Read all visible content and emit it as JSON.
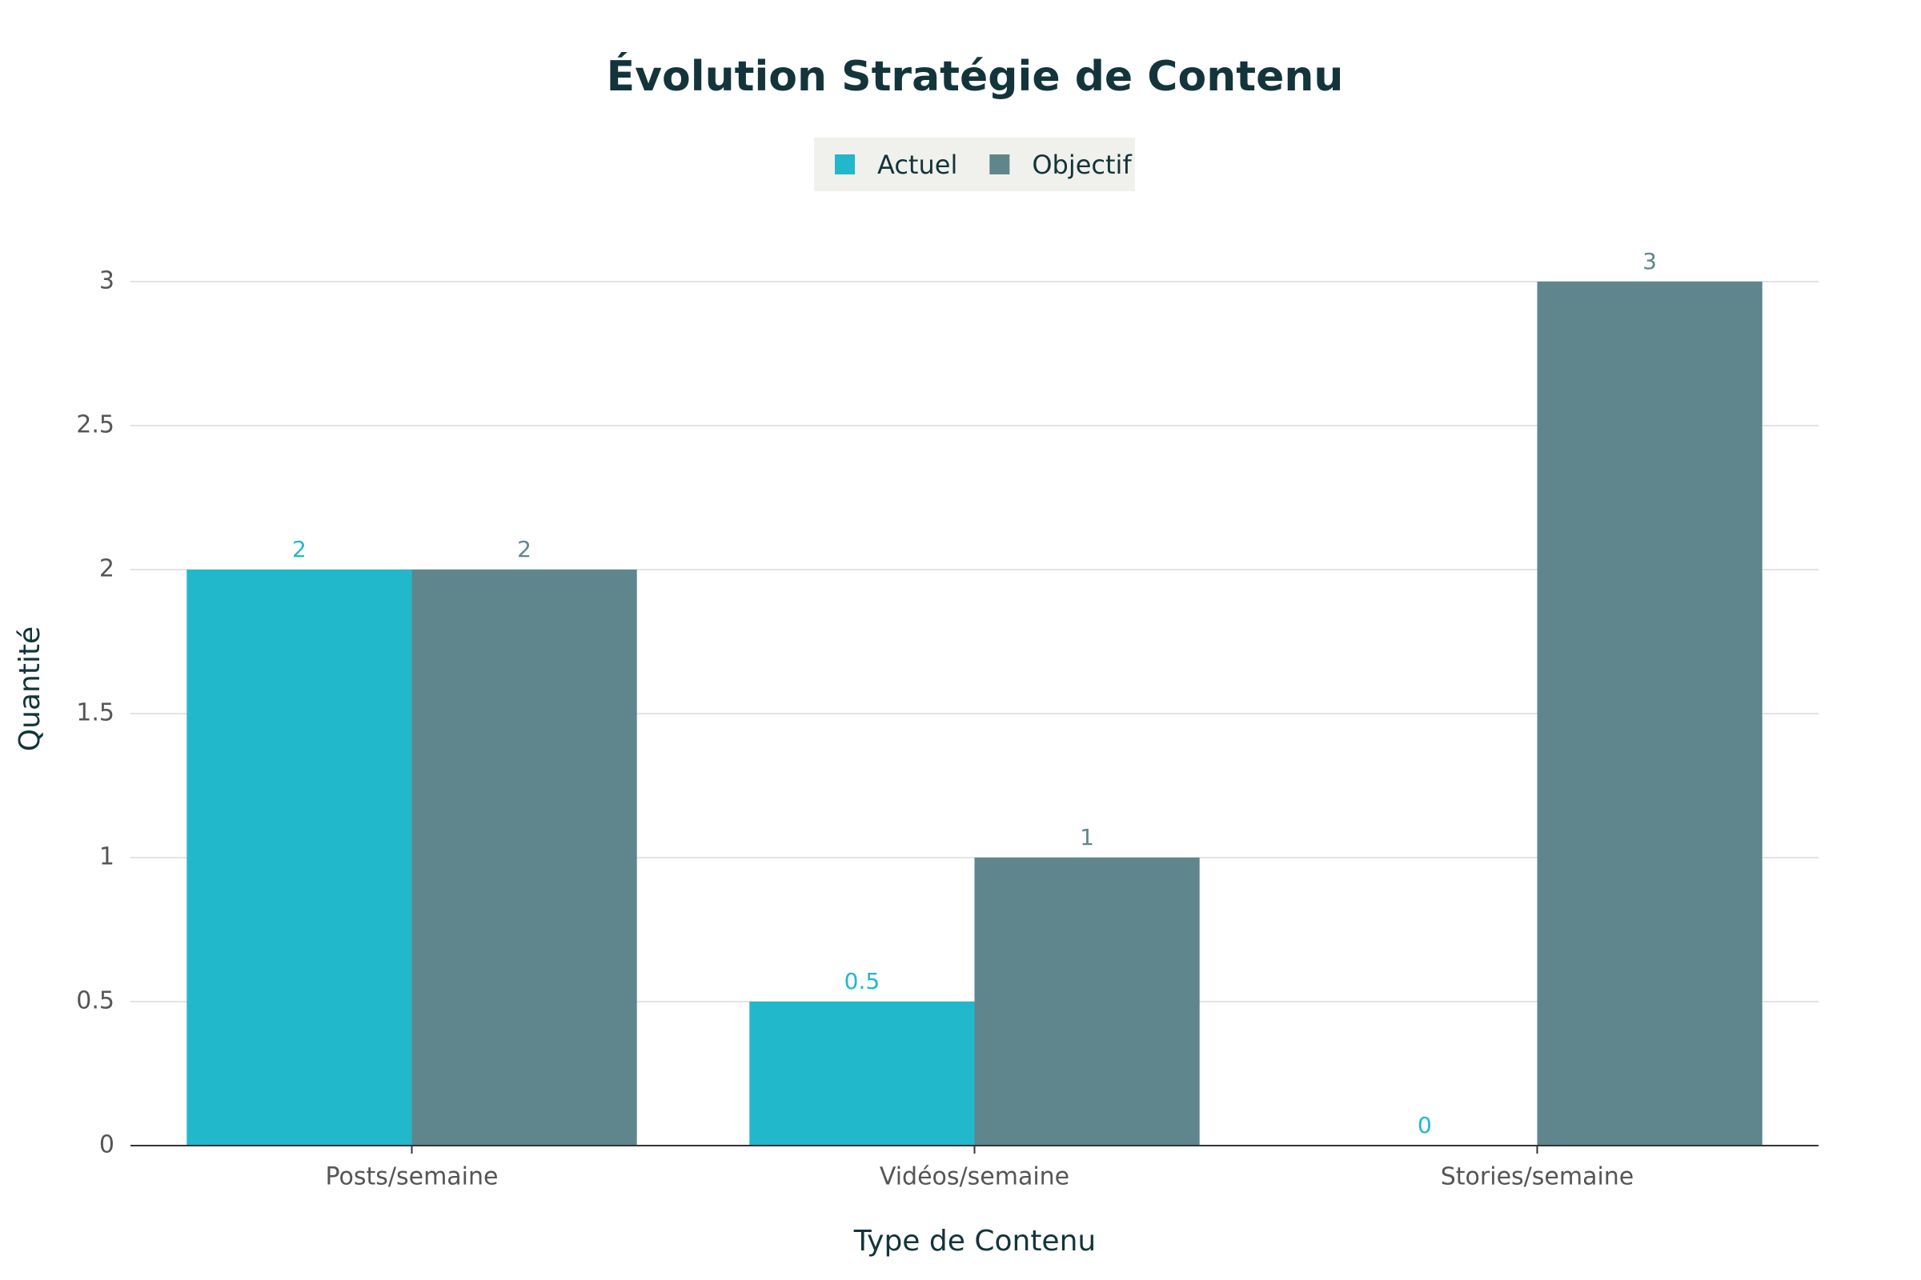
{
  "chart_data": {
    "type": "bar",
    "title": "Évolution Stratégie de Contenu",
    "x_label": "Type de Contenu",
    "y_label": "Quantité",
    "categories": [
      "Posts/semaine",
      "Vidéos/semaine",
      "Stories/semaine"
    ],
    "series": [
      {
        "name": "Actuel",
        "color": "#21b8cc",
        "values": [
          2,
          0.5,
          0
        ]
      },
      {
        "name": "Objectif",
        "color": "#5e868c",
        "values": [
          2,
          1,
          3
        ]
      }
    ],
    "ylim": [
      0,
      3
    ],
    "yticks": [
      0,
      0.5,
      1,
      1.5,
      2,
      2.5,
      3
    ],
    "grid": true,
    "legend": "top"
  }
}
